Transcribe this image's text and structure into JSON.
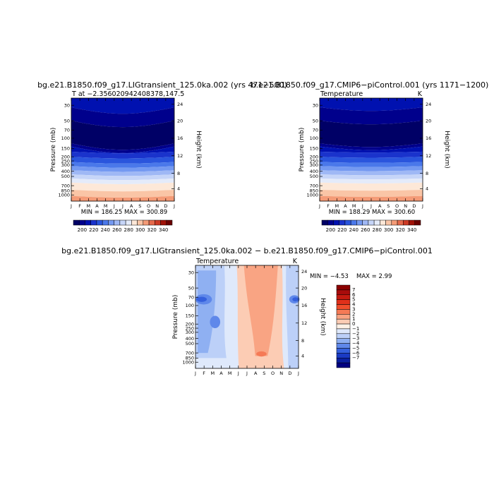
{
  "months": [
    "J",
    "F",
    "M",
    "A",
    "M",
    "J",
    "J",
    "A",
    "S",
    "O",
    "N",
    "D",
    "J"
  ],
  "pressure_ticks": [
    "30",
    "50",
    "70",
    "100",
    "150",
    "200",
    "250",
    "300",
    "400",
    "500",
    "700",
    "850",
    "1000"
  ],
  "height_ticks": [
    "24",
    "20",
    "16",
    "12",
    "8",
    "4"
  ],
  "y_left_label": "Pressure (mb)",
  "y_right_label": "Height (km)",
  "chart_data": [
    {
      "type": "heatmap",
      "id": "panel1",
      "title": "bg.e21.B1850.f09_g17.LIGtransient_125.0ka.002 (yrs 471−500)",
      "left_string": "T at −2.356020942408378,147.5",
      "right_string": "",
      "stats": "MIN = 186.25  MAX = 300.89",
      "min": 186.25,
      "max": 300.89,
      "colorbar_labels": [
        "200",
        "220",
        "240",
        "260",
        "280",
        "300",
        "320",
        "340"
      ]
    },
    {
      "type": "heatmap",
      "id": "panel2",
      "title": "b.e21.B1850.f09_g17.CMIP6−piControl.001 (yrs 1171−1200)",
      "left_string": "Temperature",
      "right_string": "K",
      "stats": "MIN = 188.29  MAX = 300.60",
      "min": 188.29,
      "max": 300.6,
      "colorbar_labels": [
        "200",
        "220",
        "240",
        "260",
        "280",
        "300",
        "320",
        "340"
      ]
    },
    {
      "type": "heatmap",
      "id": "panel3",
      "title": "bg.e21.B1850.f09_g17.LIGtransient_125.0ka.002 − b.e21.B1850.f09_g17.CMIP6−piControl.001",
      "left_string": "Temperature",
      "right_string": "K",
      "stats_min": "MIN =   −4.53",
      "stats_max": "MAX =    2.99",
      "min": -4.53,
      "max": 2.99,
      "colorbar_labels": [
        "7",
        "6",
        "5",
        "4",
        "3",
        "2",
        "1",
        "0",
        "−1",
        "−2",
        "−3",
        "−4",
        "−5",
        "−6",
        "−7"
      ]
    }
  ],
  "colors": {
    "temp_scale": [
      "#000066",
      "#00008c",
      "#0011b0",
      "#1a33cc",
      "#2a55dd",
      "#4a78ea",
      "#7499f1",
      "#9fb8f5",
      "#c6d5f8",
      "#e4ebfa",
      "#fde8d8",
      "#fac5a6",
      "#f49b77",
      "#e56a4c",
      "#cc3a25",
      "#a01208",
      "#6b0000"
    ],
    "diff_scale": [
      "#8b0000",
      "#a80c0c",
      "#c41a10",
      "#e0301a",
      "#f04e2c",
      "#f57a56",
      "#f9a483",
      "#fcccb4",
      "#fff1e6",
      "#dfe9fb",
      "#bcd0f8",
      "#8fb0f2",
      "#5f88ea",
      "#3560dd",
      "#1a3ac4",
      "#0a1fa0",
      "#000080"
    ]
  }
}
